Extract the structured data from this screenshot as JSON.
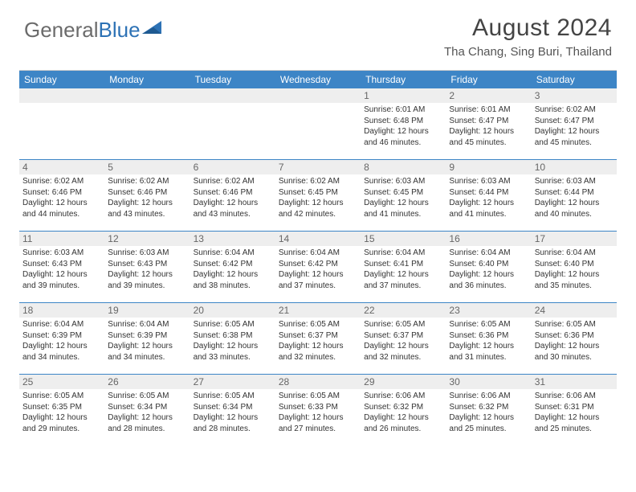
{
  "logo": {
    "text_gray": "General",
    "text_blue": "Blue"
  },
  "title": "August 2024",
  "location": "Tha Chang, Sing Buri, Thailand",
  "day_names": [
    "Sunday",
    "Monday",
    "Tuesday",
    "Wednesday",
    "Thursday",
    "Friday",
    "Saturday"
  ],
  "colors": {
    "header_bg": "#3d85c6",
    "row_divider": "#3d85c6",
    "daynum_bg": "#eeeeee",
    "logo_gray": "#6b6b6b",
    "logo_blue": "#2d72b5"
  },
  "weeks": [
    [
      {
        "n": "",
        "sunrise": "",
        "sunset": "",
        "daylight": ""
      },
      {
        "n": "",
        "sunrise": "",
        "sunset": "",
        "daylight": ""
      },
      {
        "n": "",
        "sunrise": "",
        "sunset": "",
        "daylight": ""
      },
      {
        "n": "",
        "sunrise": "",
        "sunset": "",
        "daylight": ""
      },
      {
        "n": "1",
        "sunrise": "Sunrise: 6:01 AM",
        "sunset": "Sunset: 6:48 PM",
        "daylight": "Daylight: 12 hours and 46 minutes."
      },
      {
        "n": "2",
        "sunrise": "Sunrise: 6:01 AM",
        "sunset": "Sunset: 6:47 PM",
        "daylight": "Daylight: 12 hours and 45 minutes."
      },
      {
        "n": "3",
        "sunrise": "Sunrise: 6:02 AM",
        "sunset": "Sunset: 6:47 PM",
        "daylight": "Daylight: 12 hours and 45 minutes."
      }
    ],
    [
      {
        "n": "4",
        "sunrise": "Sunrise: 6:02 AM",
        "sunset": "Sunset: 6:46 PM",
        "daylight": "Daylight: 12 hours and 44 minutes."
      },
      {
        "n": "5",
        "sunrise": "Sunrise: 6:02 AM",
        "sunset": "Sunset: 6:46 PM",
        "daylight": "Daylight: 12 hours and 43 minutes."
      },
      {
        "n": "6",
        "sunrise": "Sunrise: 6:02 AM",
        "sunset": "Sunset: 6:46 PM",
        "daylight": "Daylight: 12 hours and 43 minutes."
      },
      {
        "n": "7",
        "sunrise": "Sunrise: 6:02 AM",
        "sunset": "Sunset: 6:45 PM",
        "daylight": "Daylight: 12 hours and 42 minutes."
      },
      {
        "n": "8",
        "sunrise": "Sunrise: 6:03 AM",
        "sunset": "Sunset: 6:45 PM",
        "daylight": "Daylight: 12 hours and 41 minutes."
      },
      {
        "n": "9",
        "sunrise": "Sunrise: 6:03 AM",
        "sunset": "Sunset: 6:44 PM",
        "daylight": "Daylight: 12 hours and 41 minutes."
      },
      {
        "n": "10",
        "sunrise": "Sunrise: 6:03 AM",
        "sunset": "Sunset: 6:44 PM",
        "daylight": "Daylight: 12 hours and 40 minutes."
      }
    ],
    [
      {
        "n": "11",
        "sunrise": "Sunrise: 6:03 AM",
        "sunset": "Sunset: 6:43 PM",
        "daylight": "Daylight: 12 hours and 39 minutes."
      },
      {
        "n": "12",
        "sunrise": "Sunrise: 6:03 AM",
        "sunset": "Sunset: 6:43 PM",
        "daylight": "Daylight: 12 hours and 39 minutes."
      },
      {
        "n": "13",
        "sunrise": "Sunrise: 6:04 AM",
        "sunset": "Sunset: 6:42 PM",
        "daylight": "Daylight: 12 hours and 38 minutes."
      },
      {
        "n": "14",
        "sunrise": "Sunrise: 6:04 AM",
        "sunset": "Sunset: 6:42 PM",
        "daylight": "Daylight: 12 hours and 37 minutes."
      },
      {
        "n": "15",
        "sunrise": "Sunrise: 6:04 AM",
        "sunset": "Sunset: 6:41 PM",
        "daylight": "Daylight: 12 hours and 37 minutes."
      },
      {
        "n": "16",
        "sunrise": "Sunrise: 6:04 AM",
        "sunset": "Sunset: 6:40 PM",
        "daylight": "Daylight: 12 hours and 36 minutes."
      },
      {
        "n": "17",
        "sunrise": "Sunrise: 6:04 AM",
        "sunset": "Sunset: 6:40 PM",
        "daylight": "Daylight: 12 hours and 35 minutes."
      }
    ],
    [
      {
        "n": "18",
        "sunrise": "Sunrise: 6:04 AM",
        "sunset": "Sunset: 6:39 PM",
        "daylight": "Daylight: 12 hours and 34 minutes."
      },
      {
        "n": "19",
        "sunrise": "Sunrise: 6:04 AM",
        "sunset": "Sunset: 6:39 PM",
        "daylight": "Daylight: 12 hours and 34 minutes."
      },
      {
        "n": "20",
        "sunrise": "Sunrise: 6:05 AM",
        "sunset": "Sunset: 6:38 PM",
        "daylight": "Daylight: 12 hours and 33 minutes."
      },
      {
        "n": "21",
        "sunrise": "Sunrise: 6:05 AM",
        "sunset": "Sunset: 6:37 PM",
        "daylight": "Daylight: 12 hours and 32 minutes."
      },
      {
        "n": "22",
        "sunrise": "Sunrise: 6:05 AM",
        "sunset": "Sunset: 6:37 PM",
        "daylight": "Daylight: 12 hours and 32 minutes."
      },
      {
        "n": "23",
        "sunrise": "Sunrise: 6:05 AM",
        "sunset": "Sunset: 6:36 PM",
        "daylight": "Daylight: 12 hours and 31 minutes."
      },
      {
        "n": "24",
        "sunrise": "Sunrise: 6:05 AM",
        "sunset": "Sunset: 6:36 PM",
        "daylight": "Daylight: 12 hours and 30 minutes."
      }
    ],
    [
      {
        "n": "25",
        "sunrise": "Sunrise: 6:05 AM",
        "sunset": "Sunset: 6:35 PM",
        "daylight": "Daylight: 12 hours and 29 minutes."
      },
      {
        "n": "26",
        "sunrise": "Sunrise: 6:05 AM",
        "sunset": "Sunset: 6:34 PM",
        "daylight": "Daylight: 12 hours and 28 minutes."
      },
      {
        "n": "27",
        "sunrise": "Sunrise: 6:05 AM",
        "sunset": "Sunset: 6:34 PM",
        "daylight": "Daylight: 12 hours and 28 minutes."
      },
      {
        "n": "28",
        "sunrise": "Sunrise: 6:05 AM",
        "sunset": "Sunset: 6:33 PM",
        "daylight": "Daylight: 12 hours and 27 minutes."
      },
      {
        "n": "29",
        "sunrise": "Sunrise: 6:06 AM",
        "sunset": "Sunset: 6:32 PM",
        "daylight": "Daylight: 12 hours and 26 minutes."
      },
      {
        "n": "30",
        "sunrise": "Sunrise: 6:06 AM",
        "sunset": "Sunset: 6:32 PM",
        "daylight": "Daylight: 12 hours and 25 minutes."
      },
      {
        "n": "31",
        "sunrise": "Sunrise: 6:06 AM",
        "sunset": "Sunset: 6:31 PM",
        "daylight": "Daylight: 12 hours and 25 minutes."
      }
    ]
  ]
}
